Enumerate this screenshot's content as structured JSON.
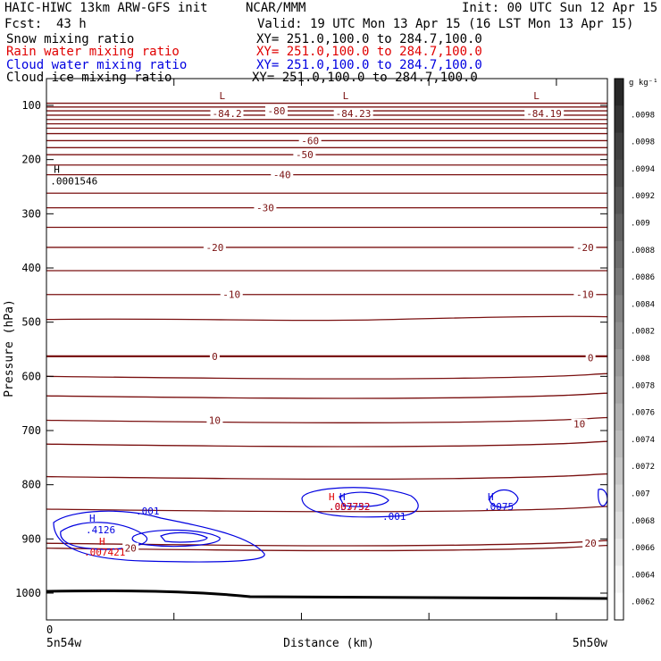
{
  "header": {
    "model": "HAIC-HIWC 13km ARW-GFS init",
    "org": "NCAR/MMM",
    "init": "Init: 00 UTC Sun 12 Apr 15",
    "fcst_label": "Fcst:",
    "fcst_value": "43 h",
    "valid": "Valid: 19 UTC Mon 13 Apr 15 (16 LST Mon 13 Apr 15)"
  },
  "fields": [
    {
      "name": "Snow mixing ratio",
      "xy": "XY= 251.0,100.0 to 284.7,100.0",
      "color": "#000000"
    },
    {
      "name": "Rain water mixing ratio",
      "xy": "XY= 251.0,100.0 to 284.7,100.0",
      "color": "#e00000"
    },
    {
      "name": "Cloud water mixing ratio",
      "xy": "XY= 251.0,100.0 to 284.7,100.0",
      "color": "#0000e0"
    },
    {
      "name": "Cloud ice mixing ratio",
      "xy": "XY= 251.0,100.0 to 284.7,100.0",
      "color": "#000000"
    }
  ],
  "chart_data": {
    "type": "cross-section",
    "ylabel": "Pressure (hPa)",
    "xlabel": "Distance (km)",
    "y_ticks": [
      100,
      200,
      300,
      400,
      500,
      600,
      700,
      800,
      900,
      1000
    ],
    "ylim": [
      1050,
      50
    ],
    "xlim": [
      0,
      100
    ],
    "x_tick_label": "0",
    "x_left_label": "5n54w",
    "x_right_label": "5n50w",
    "colorbar": {
      "unit": "g kg⁻¹",
      "labels": [
        ".0098",
        ".0098",
        ".0094",
        ".0092",
        ".009",
        ".0088",
        ".0086",
        ".0084",
        ".0082",
        ".008",
        ".0078",
        ".0076",
        ".0074",
        ".0072",
        ".007",
        ".0068",
        ".0066",
        ".0064",
        ".0062"
      ]
    },
    "temperature_contours": {
      "color": "#7a1010",
      "labeled": [
        {
          "label": "-80",
          "x": 41,
          "p": 110
        },
        {
          "label": "-60",
          "x": 47,
          "p": 165
        },
        {
          "label": "-50",
          "x": 46,
          "p": 191
        },
        {
          "label": "-40",
          "x": 42,
          "p": 228
        },
        {
          "label": "-30",
          "x": 39,
          "p": 289
        },
        {
          "label": "-20",
          "x": 30,
          "p": 362
        },
        {
          "label": "-20",
          "x": 96,
          "p": 362
        },
        {
          "label": "-10",
          "x": 33,
          "p": 449
        },
        {
          "label": "-10",
          "x": 96,
          "p": 449
        },
        {
          "label": "0",
          "x": 30,
          "p": 563
        },
        {
          "label": "0",
          "x": 97,
          "p": 566
        },
        {
          "label": "10",
          "x": 30,
          "p": 681
        },
        {
          "label": "10",
          "x": 95,
          "p": 688
        },
        {
          "label": "20",
          "x": 97,
          "p": 908
        },
        {
          "label": "20",
          "x": 15,
          "p": 917
        }
      ],
      "minima": [
        {
          "marker": "L",
          "value": "-84.2",
          "x": 34,
          "p": 102
        },
        {
          "marker": "L",
          "value": "-84.23",
          "x": 56,
          "p": 102
        },
        {
          "marker": "L",
          "value": "-84.19",
          "x": 90,
          "p": 102
        }
      ]
    },
    "snow_max": {
      "marker": "H",
      "value": ".0001546",
      "x": 1,
      "p": 238
    },
    "cloud_water": {
      "contour_label": ".001",
      "maxima": [
        {
          "marker": "H",
          "value": ".4126",
          "x": 9,
          "p": 878
        },
        {
          "marker": "H",
          "value": ".037752",
          "x": 52,
          "p": 832
        },
        {
          "marker": "H",
          "value": ".0075",
          "x": 81,
          "p": 832
        }
      ]
    },
    "rain_water": {
      "maxima": [
        {
          "marker": "H",
          "value": ".007421",
          "x": 9,
          "p": 917
        },
        {
          "marker": "H",
          "value": ".003732",
          "x": 50,
          "p": 832
        }
      ]
    }
  }
}
